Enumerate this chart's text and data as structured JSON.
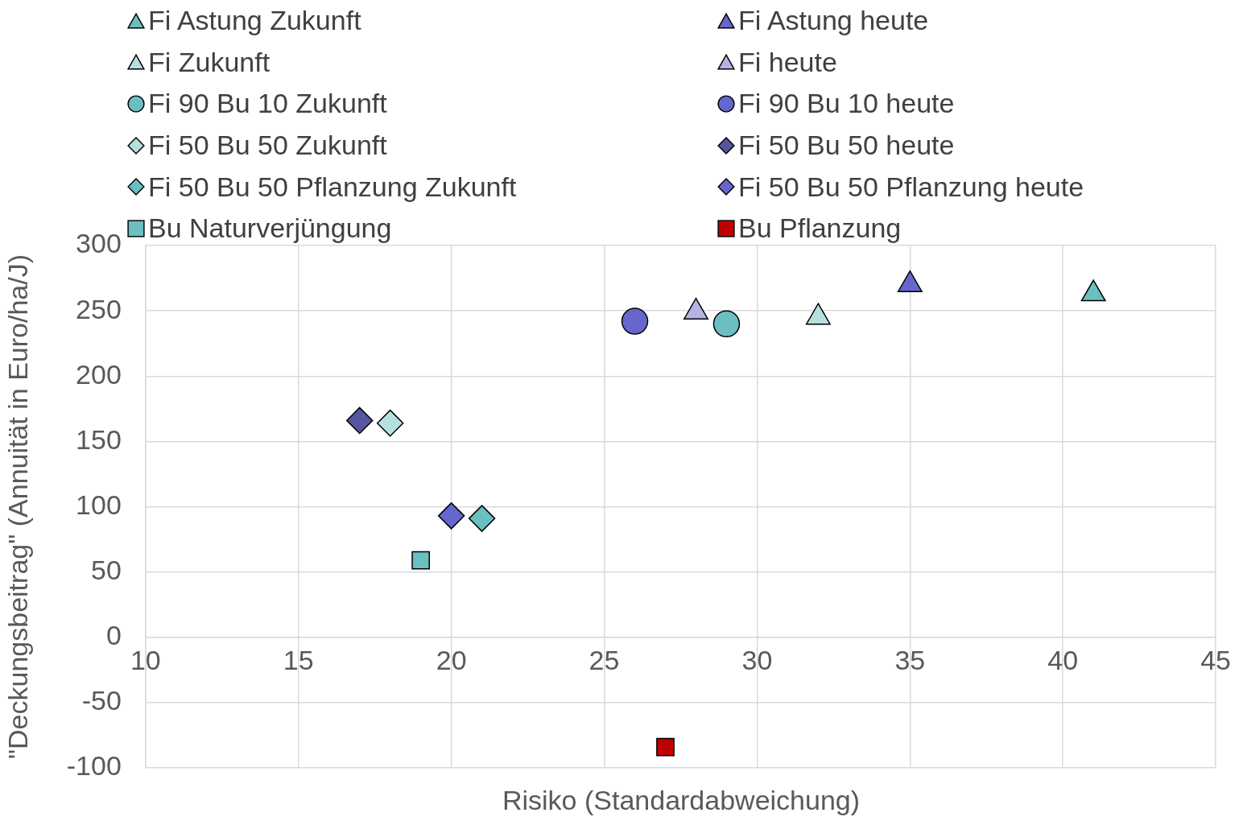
{
  "chart_data": {
    "type": "scatter",
    "xlabel": "Risiko (Standardabweichung)",
    "ylabel": "\"Deckungsbeitrag\" (Annuität in Euro/ha/J)",
    "xlim": [
      10,
      45
    ],
    "xticks": [
      10,
      15,
      20,
      25,
      30,
      35,
      40,
      45
    ],
    "ylim": [
      -100,
      300
    ],
    "yticks": [
      -100,
      -50,
      0,
      50,
      100,
      150,
      200,
      250,
      300
    ],
    "grid": true,
    "legend": "top",
    "series": [
      {
        "name": "Fi Astung Zukunft",
        "color": "#6bbfc0",
        "marker": "triangle",
        "x": [
          41
        ],
        "values": [
          263
        ]
      },
      {
        "name": "Fi Astung heute",
        "color": "#6666cc",
        "marker": "triangle",
        "x": [
          35
        ],
        "values": [
          270
        ]
      },
      {
        "name": "Fi Zukunft",
        "color": "#b5dfe0",
        "marker": "triangle",
        "x": [
          32
        ],
        "values": [
          245
        ]
      },
      {
        "name": "Fi heute",
        "color": "#b3b3e6",
        "marker": "triangle",
        "x": [
          28
        ],
        "values": [
          249
        ]
      },
      {
        "name": "Fi 90 Bu 10 Zukunft",
        "color": "#6bbfc0",
        "marker": "circle",
        "x": [
          29
        ],
        "values": [
          240
        ]
      },
      {
        "name": "Fi 90 Bu 10 heute",
        "color": "#6666cc",
        "marker": "circle",
        "x": [
          26
        ],
        "values": [
          242
        ]
      },
      {
        "name": "Fi 50 Bu 50 Zukunft",
        "color": "#b5dfe0",
        "marker": "diamond",
        "x": [
          18
        ],
        "values": [
          164
        ]
      },
      {
        "name": "Fi 50 Bu 50 heute",
        "color": "#5555a0",
        "marker": "diamond",
        "x": [
          17
        ],
        "values": [
          166
        ]
      },
      {
        "name": "Fi 50 Bu 50 Pflanzung Zukunft",
        "color": "#6bbfc0",
        "marker": "diamond",
        "x": [
          21
        ],
        "values": [
          91
        ]
      },
      {
        "name": "Fi 50 Bu 50 Pflanzung heute",
        "color": "#6666cc",
        "marker": "diamond",
        "x": [
          20
        ],
        "values": [
          93
        ]
      },
      {
        "name": "Bu Naturverjüngung",
        "color": "#6bbfc0",
        "marker": "square",
        "x": [
          19
        ],
        "values": [
          59
        ]
      },
      {
        "name": "Bu Pflanzung",
        "color": "#c00000",
        "marker": "square",
        "x": [
          27
        ],
        "values": [
          -84
        ]
      }
    ]
  }
}
